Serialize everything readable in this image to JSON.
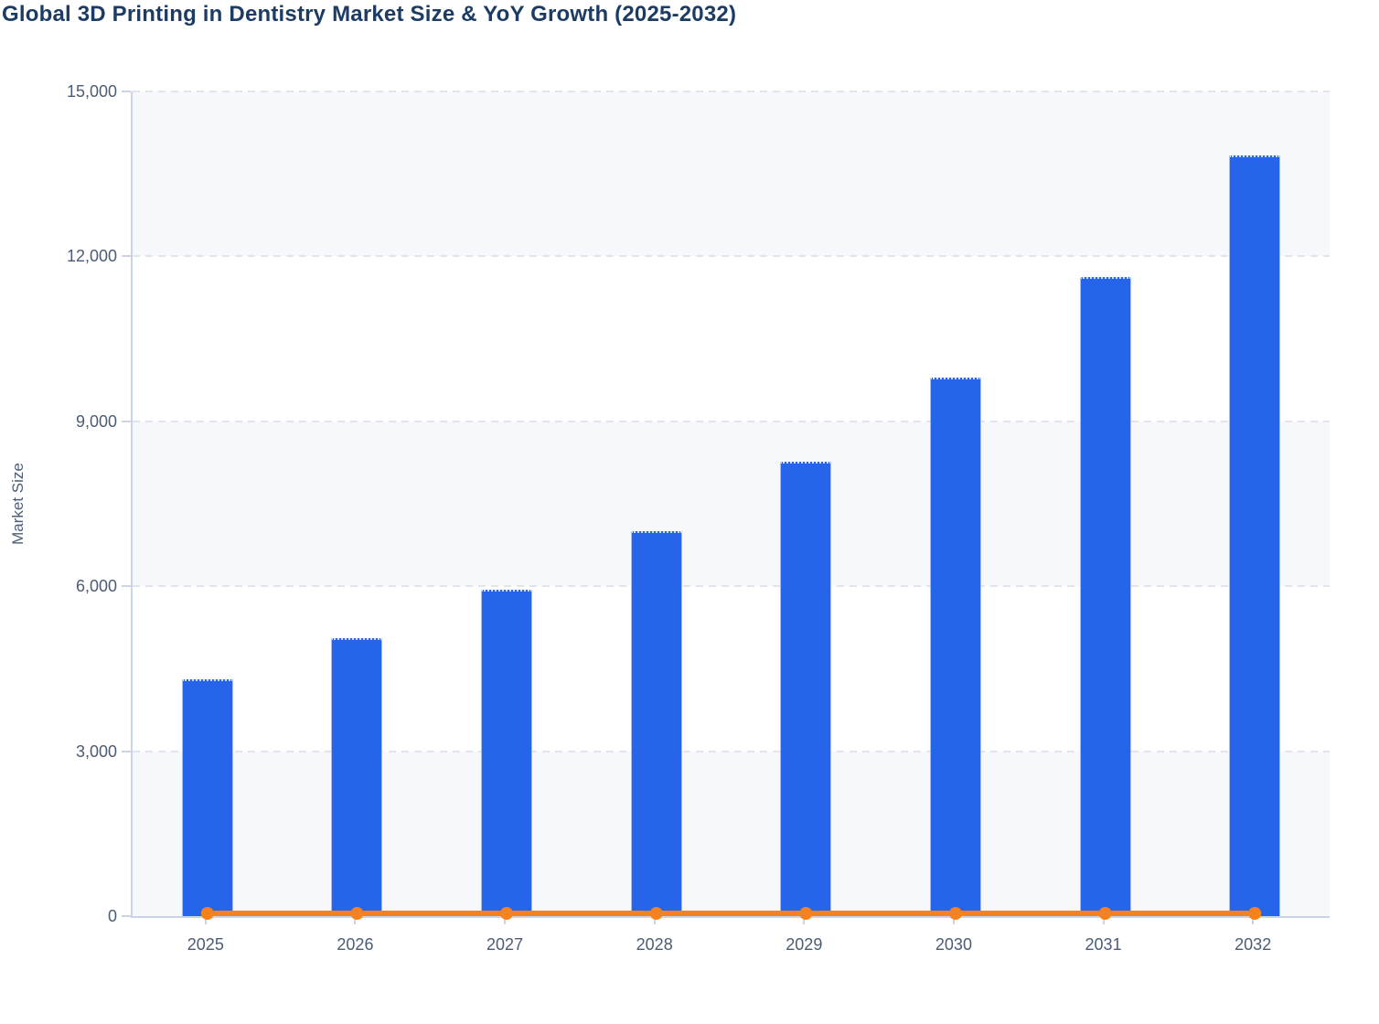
{
  "chart_data": {
    "type": "bar",
    "title": "Global 3D Printing in Dentistry Market Size & YoY Growth (2025-2032)",
    "ylabel": "Market Size",
    "xlabel": "",
    "categories": [
      "2025",
      "2026",
      "2027",
      "2028",
      "2029",
      "2030",
      "2031",
      "2032"
    ],
    "series": [
      {
        "name": "Market Size",
        "type": "bar",
        "color": "#2664EA",
        "values": [
          4310,
          5060,
          5930,
          7000,
          8260,
          9800,
          11620,
          13840
        ]
      },
      {
        "name": "YoY Growth",
        "type": "line",
        "color": "#F6821F",
        "values": [
          0,
          0,
          0,
          0,
          0,
          0,
          0,
          0
        ]
      }
    ],
    "ylim": [
      0,
      15000
    ],
    "ytick_step": 3000,
    "yticks": [
      0,
      3000,
      6000,
      9000,
      12000,
      15000
    ],
    "ytick_labels": [
      "0",
      "3,000",
      "6,000",
      "9,000",
      "12,000",
      "15,000"
    ],
    "grid": "horizontal-dashed",
    "alternating_bands": true,
    "legend_position": "none"
  },
  "styles": {
    "title_color": "#1C3C64",
    "axis_text_color": "#4C5C74",
    "bar_color": "#2664EA",
    "line_color": "#F6821F",
    "grid_color": "#E1E4EA",
    "axis_line_color": "#CBD4E6",
    "band_color": "#F7F8FB",
    "background": "#FFFFFF"
  }
}
